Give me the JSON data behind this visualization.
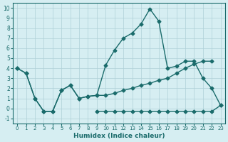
{
  "xlabel": "Humidex (Indice chaleur)",
  "xlim": [
    -0.5,
    23.5
  ],
  "ylim": [
    -1.5,
    10.5
  ],
  "xticks": [
    0,
    1,
    2,
    3,
    4,
    5,
    6,
    7,
    8,
    9,
    10,
    11,
    12,
    13,
    14,
    15,
    16,
    17,
    18,
    19,
    20,
    21,
    22,
    23
  ],
  "yticks": [
    -1,
    0,
    1,
    2,
    3,
    4,
    5,
    6,
    7,
    8,
    9,
    10
  ],
  "background_color": "#d6eef2",
  "grid_color": "#afd0d8",
  "line_color": "#1a6b6b",
  "line1_x": [
    0,
    1,
    2,
    3,
    4,
    5,
    6,
    7,
    8,
    9,
    10,
    11,
    12,
    13,
    14,
    15,
    16,
    17,
    18,
    19,
    20,
    21,
    22,
    23
  ],
  "line1_y": [
    4.0,
    3.5,
    1.0,
    -0.3,
    -0.3,
    1.8,
    2.3,
    1.0,
    1.2,
    1.3,
    4.3,
    5.8,
    7.0,
    7.5,
    8.4,
    9.9,
    8.7,
    4.0,
    4.2,
    4.7,
    4.7,
    3.0,
    2.0,
    0.3
  ],
  "line2_x": [
    9,
    10,
    11,
    12,
    13,
    14,
    15,
    16,
    17,
    18,
    19,
    20,
    21,
    22,
    23
  ],
  "line2_y": [
    -0.3,
    -0.3,
    -0.3,
    -0.3,
    -0.3,
    -0.3,
    -0.3,
    -0.3,
    -0.3,
    -0.3,
    -0.3,
    -0.3,
    -0.3,
    -0.3,
    0.3
  ],
  "line3_x": [
    0,
    1,
    2,
    3,
    4,
    5,
    6,
    7,
    8,
    9,
    10,
    11,
    12,
    13,
    14,
    15,
    16,
    17,
    18,
    19,
    20,
    21,
    22
  ],
  "line3_y": [
    4.0,
    3.5,
    1.0,
    -0.3,
    -0.3,
    1.8,
    2.3,
    1.0,
    1.2,
    1.3,
    1.3,
    1.5,
    1.8,
    2.0,
    2.3,
    2.5,
    2.8,
    3.0,
    3.5,
    4.0,
    4.4,
    4.7,
    4.7
  ]
}
